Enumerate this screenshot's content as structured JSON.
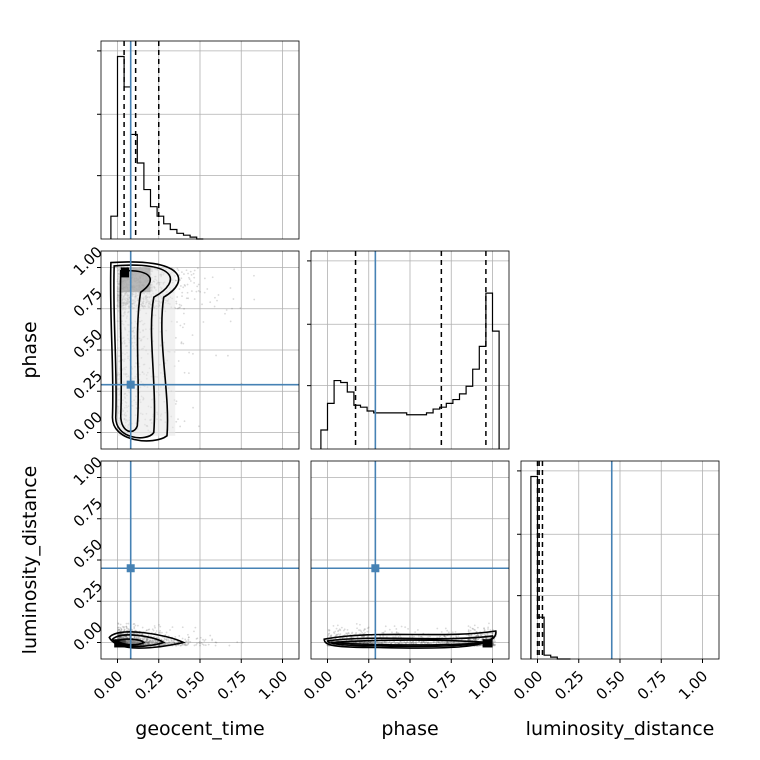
{
  "chart_data": {
    "type": "corner",
    "parameters": [
      "geocent_time",
      "phase",
      "luminosity_distance"
    ],
    "tick_labels": [
      "0.00",
      "0.25",
      "0.50",
      "0.75",
      "1.00"
    ],
    "ticks": [
      0,
      0.25,
      0.5,
      0.75,
      1.0
    ],
    "truths": {
      "geocent_time": 0.08,
      "phase": 0.29,
      "luminosity_distance": 0.45
    },
    "colors": {
      "truth": "#4682b4",
      "hist": "#000000",
      "grid": "#b0b0b0",
      "scatter": "#555555"
    },
    "grid": true,
    "histograms": [
      {
        "param": "geocent_time",
        "bin_edges": [
          -0.04,
          0.0,
          0.04,
          0.08,
          0.12,
          0.16,
          0.2,
          0.24,
          0.28,
          0.32,
          0.36,
          0.4,
          0.44,
          0.48,
          0.52
        ],
        "counts": [
          0.12,
          0.96,
          0.8,
          0.55,
          0.4,
          0.26,
          0.17,
          0.12,
          0.08,
          0.05,
          0.03,
          0.02,
          0.01,
          0.0
        ],
        "quantiles": [
          0.04,
          0.11,
          0.25
        ]
      },
      {
        "param": "phase",
        "bin_edges": [
          -0.04,
          0.0,
          0.04,
          0.08,
          0.12,
          0.16,
          0.2,
          0.24,
          0.28,
          0.32,
          0.36,
          0.4,
          0.44,
          0.48,
          0.52,
          0.56,
          0.6,
          0.64,
          0.68,
          0.72,
          0.76,
          0.8,
          0.84,
          0.88,
          0.92,
          0.96,
          1.0,
          1.04
        ],
        "counts": [
          0.1,
          0.24,
          0.36,
          0.35,
          0.3,
          0.23,
          0.22,
          0.2,
          0.19,
          0.19,
          0.19,
          0.19,
          0.19,
          0.18,
          0.18,
          0.18,
          0.19,
          0.21,
          0.22,
          0.24,
          0.26,
          0.29,
          0.33,
          0.42,
          0.54,
          0.82,
          0.62
        ],
        "quantiles": [
          0.17,
          0.69,
          0.96
        ]
      },
      {
        "param": "luminosity_distance",
        "bin_edges": [
          -0.04,
          0.0,
          0.04,
          0.08,
          0.12,
          0.16,
          0.2
        ],
        "counts": [
          0.96,
          0.22,
          0.02,
          0.01,
          0.0,
          0.0
        ],
        "quantiles": [
          0.0,
          0.01,
          0.03
        ]
      }
    ]
  }
}
